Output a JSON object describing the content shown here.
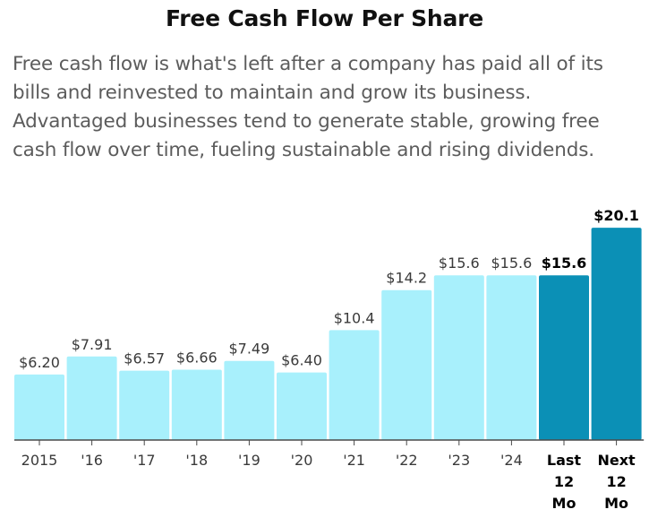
{
  "header": {
    "title": "Free Cash Flow Per Share",
    "description": "Free cash flow is what's left after a company has paid all of its bills and reinvested to maintain and grow its business. Advantaged businesses tend to generate stable, growing free cash flow over time, fueling sustainable and rising dividends."
  },
  "colors": {
    "light_bar": "#a8f0fc",
    "dark_bar": "#0b90b6",
    "axis": "#4a4a4a"
  },
  "chart_data": {
    "type": "bar",
    "title": "Free Cash Flow Per Share",
    "xlabel": "",
    "ylabel": "",
    "ylim": [
      0,
      21.3
    ],
    "grid": false,
    "legend": "none",
    "categories": [
      "2015",
      "'16",
      "'17",
      "'18",
      "'19",
      "'20",
      "'21",
      "'22",
      "'23",
      "'24",
      "Last 12 Mo",
      "Next 12 Mo"
    ],
    "values": [
      6.2,
      7.91,
      6.57,
      6.66,
      7.49,
      6.4,
      10.4,
      14.2,
      15.6,
      15.6,
      15.6,
      20.1
    ],
    "labels": [
      "$6.20",
      "$7.91",
      "$6.57",
      "$6.66",
      "$7.49",
      "$6.40",
      "$10.4",
      "$14.2",
      "$15.6",
      "$15.6",
      "$15.6",
      "$20.1"
    ],
    "tick_lines": [
      [
        "2015"
      ],
      [
        "'16"
      ],
      [
        "'17"
      ],
      [
        "'18"
      ],
      [
        "'19"
      ],
      [
        "'20"
      ],
      [
        "'21"
      ],
      [
        "'22"
      ],
      [
        "'23"
      ],
      [
        "'24"
      ],
      [
        "Last",
        "12",
        "Mo"
      ],
      [
        "Next",
        "12",
        "Mo"
      ]
    ],
    "highlighted": [
      false,
      false,
      false,
      false,
      false,
      false,
      false,
      false,
      false,
      false,
      true,
      true
    ]
  }
}
